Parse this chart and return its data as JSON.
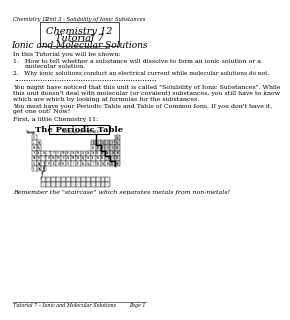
{
  "title_lines": [
    "Chemistry 12",
    "Tutorial 7",
    "Ionic and Molecular Solutions"
  ],
  "header_left": "Chemistry 12",
  "header_right": "Unit 3 - Solubility of Ionic Substances",
  "footer_left": "Tutorial 7 – Ionic and Molecular Solutions",
  "footer_right": "Page 1",
  "intro": "In this Tutorial you will be shown:",
  "point1a": "1.   How to tell whether a substance will dissolve to form an ionic solution or a",
  "point1b": "      molecular solution.",
  "point2": "2.   Why ionic solutions conduct an electrical current while molecular solutions do not.",
  "dots": "••••••••••••••••••••••••••••••••••••••••••••••••••••••••••••",
  "para1a": "You might have noticed that this unit is called \"Solubility of Ionic Substances\". While",
  "para1b": "this unit doesn't deal with molecular (or covalent) substances, you still have to know",
  "para1c": "which are which by looking at formulas for the substances.",
  "para2a": "You must have your Periodic Table and Table of Common Ions. If you don't have it,",
  "para2b": "get one out! Now!",
  "para3": "First, a little Chemistry 11:",
  "periodic_title": "The Periodic Table",
  "remember": "Remember the \"staircase\" which separates metals from non-metals!",
  "bg_color": "#ffffff",
  "text_color": "#000000",
  "box_color": "#000000",
  "title_font_size": 7,
  "body_font_size": 4.5,
  "header_font_size": 3.8,
  "footer_font_size": 3.5
}
